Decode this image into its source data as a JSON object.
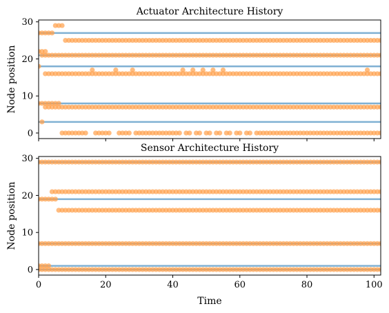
{
  "chart_data": [
    {
      "type": "scatter",
      "title": "Actuator Architecture History",
      "xlabel": "",
      "ylabel": "Node position",
      "xlim": [
        0,
        102
      ],
      "ylim": [
        -1.5,
        30.5
      ],
      "xticks": [
        0,
        20,
        40,
        60,
        80,
        100
      ],
      "yticks": [
        0,
        10,
        20,
        30
      ],
      "show_xtick_labels": false,
      "reference_lines": [
        3,
        8,
        18,
        21,
        27
      ],
      "reference_color": "#7fb0d3",
      "marker_color": "#ff9f4a",
      "series_segments": [
        {
          "y": 27,
          "x_start": 0,
          "x_end": 4
        },
        {
          "y": 29,
          "x_start": 5,
          "x_end": 7
        },
        {
          "y": 25,
          "x_start": 8,
          "x_end": 102
        },
        {
          "y": 22,
          "x_start": 0,
          "x_end": 2
        },
        {
          "y": 21,
          "x_start": 1,
          "x_end": 102
        },
        {
          "y": 18,
          "x_start": 0,
          "x_end": 0
        },
        {
          "y": 16,
          "x_start": 2,
          "x_end": 102
        },
        {
          "y": 17,
          "x_values": [
            16,
            23,
            28,
            43,
            46,
            49,
            52,
            55,
            98
          ]
        },
        {
          "y": 8,
          "x_start": 0,
          "x_end": 6
        },
        {
          "y": 7,
          "x_start": 2,
          "x_end": 102
        },
        {
          "y": 3,
          "x_start": 1,
          "x_end": 1
        },
        {
          "y": 0,
          "x_start": 7,
          "x_end": 102,
          "missing": [
            15,
            16,
            22,
            23,
            28,
            43,
            46,
            49,
            52,
            55,
            58,
            61,
            64
          ]
        }
      ]
    },
    {
      "type": "scatter",
      "title": "Sensor Architecture History",
      "xlabel": "Time",
      "ylabel": "Node position",
      "xlim": [
        0,
        102
      ],
      "ylim": [
        -1.5,
        30.5
      ],
      "xticks": [
        0,
        20,
        40,
        60,
        80,
        100
      ],
      "yticks": [
        0,
        10,
        20,
        30
      ],
      "show_xtick_labels": true,
      "reference_lines": [
        0,
        1,
        7,
        19,
        29
      ],
      "reference_color": "#7fb0d3",
      "marker_color": "#ff9f4a",
      "series_segments": [
        {
          "y": 29,
          "x_start": 0,
          "x_end": 102
        },
        {
          "y": 21,
          "x_start": 4,
          "x_end": 102
        },
        {
          "y": 19,
          "x_start": 0,
          "x_end": 5
        },
        {
          "y": 16,
          "x_start": 6,
          "x_end": 102
        },
        {
          "y": 7,
          "x_start": 0,
          "x_end": 102
        },
        {
          "y": 1,
          "x_start": 0,
          "x_end": 3
        },
        {
          "y": 0,
          "x_start": 0,
          "x_end": 102
        }
      ]
    }
  ]
}
